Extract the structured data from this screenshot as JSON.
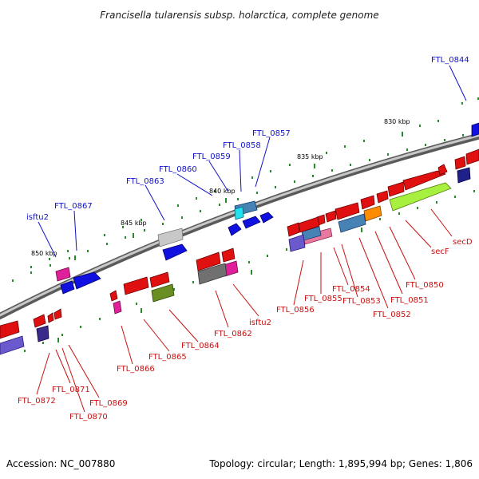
{
  "title": "Francisella tularensis subsp. holarctica, complete genome",
  "footer": {
    "accession": "Accession: NC_007880",
    "summary": "Topology: circular; Length: 1,895,994 bp; Genes: 1,806"
  },
  "ticks": [
    "830 kbp",
    "835 kbp",
    "840 kbp",
    "845 kbp",
    "850 kbp"
  ],
  "top_labels": [
    "FTL_0844",
    "FTL_0857",
    "FTL_0858",
    "FTL_0859",
    "FTL_0860",
    "FTL_0863",
    "FTL_0867",
    "isftu2"
  ],
  "bottom_labels": [
    "secD",
    "secF",
    "FTL_0850",
    "FTL_0851",
    "FTL_0852",
    "FTL_0853",
    "FTL_0854",
    "FTL_0855",
    "FTL_0856",
    "isftu2",
    "FTL_0862",
    "FTL_0864",
    "FTL_0865",
    "FTL_0866",
    "FTL_0869",
    "FTL_0870",
    "FTL_0871",
    "FTL_0872"
  ],
  "colors": {
    "forward": "#1010e0",
    "reverse": "#e01010",
    "pink": "#e0209a",
    "lime": "#a8f040",
    "orange": "#ff8c00",
    "steel": "#4682b4",
    "slate": "#6a5acd",
    "gray": "#808080",
    "olive": "#6b8e23",
    "label_blue": "#1010c8",
    "label_red": "#c81010"
  }
}
